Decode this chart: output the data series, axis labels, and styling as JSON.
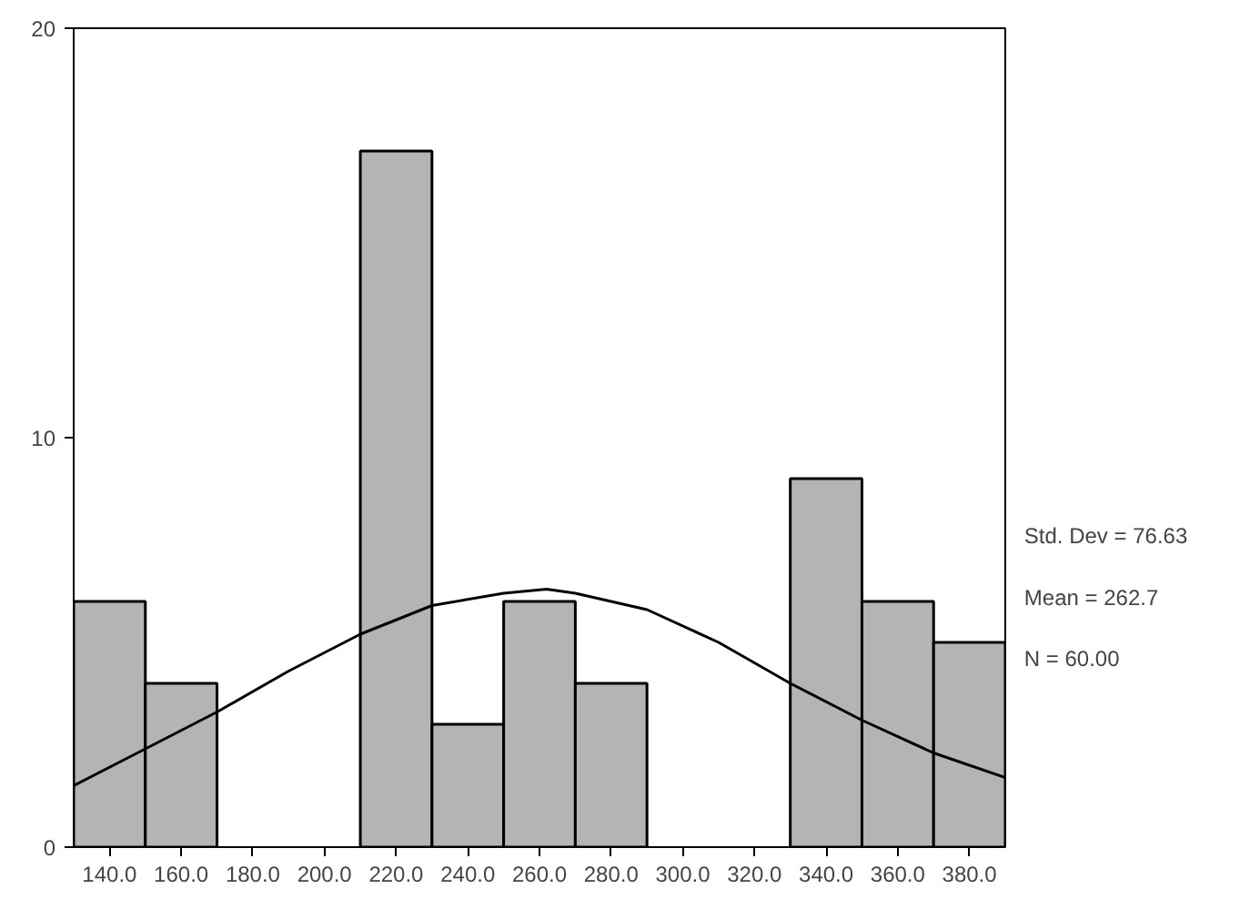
{
  "chart_data": {
    "type": "histogram",
    "bins": [
      130,
      150,
      170,
      190,
      210,
      230,
      250,
      270,
      290,
      310,
      330,
      350,
      370,
      390
    ],
    "values": [
      6,
      4,
      0,
      0,
      17,
      3,
      6,
      4,
      0,
      0,
      9,
      6,
      5
    ],
    "color": "#b4b4b4",
    "series": [
      {
        "type": "line",
        "color": "#000000",
        "x": [
          130,
          150,
          170,
          190,
          210,
          230,
          250,
          262,
          270,
          290,
          310,
          330,
          350,
          370,
          390
        ],
        "values": [
          1.5,
          2.4,
          3.3,
          4.3,
          5.2,
          5.9,
          6.2,
          6.3,
          6.2,
          5.8,
          5.0,
          4.0,
          3.1,
          2.3,
          1.7
        ]
      }
    ],
    "xlim": [
      130,
      390
    ],
    "xticks": [
      {
        "value": 140,
        "label": "140.0"
      },
      {
        "value": 160,
        "label": "160.0"
      },
      {
        "value": 180,
        "label": "180.0"
      },
      {
        "value": 200,
        "label": "200.0"
      },
      {
        "value": 220,
        "label": "220.0"
      },
      {
        "value": 240,
        "label": "240.0"
      },
      {
        "value": 260,
        "label": "260.0"
      },
      {
        "value": 280,
        "label": "280.0"
      },
      {
        "value": 300,
        "label": "300.0"
      },
      {
        "value": 320,
        "label": "320.0"
      },
      {
        "value": 340,
        "label": "340.0"
      },
      {
        "value": 360,
        "label": "360.0"
      },
      {
        "value": 380,
        "label": "380.0"
      }
    ],
    "ylim": [
      0,
      20
    ],
    "yticks": [
      0,
      10,
      20
    ],
    "grid": false,
    "annotations": [
      "Std. Dev = 76.63",
      "Mean = 262.7",
      "N = 60.00"
    ]
  }
}
